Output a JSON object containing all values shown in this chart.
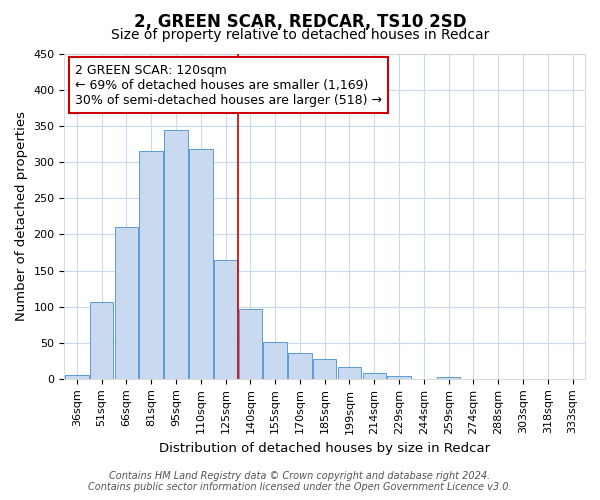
{
  "title": "2, GREEN SCAR, REDCAR, TS10 2SD",
  "subtitle": "Size of property relative to detached houses in Redcar",
  "xlabel": "Distribution of detached houses by size in Redcar",
  "ylabel": "Number of detached properties",
  "categories": [
    "36sqm",
    "51sqm",
    "66sqm",
    "81sqm",
    "95sqm",
    "110sqm",
    "125sqm",
    "140sqm",
    "155sqm",
    "170sqm",
    "185sqm",
    "199sqm",
    "214sqm",
    "229sqm",
    "244sqm",
    "259sqm",
    "274sqm",
    "288sqm",
    "303sqm",
    "318sqm",
    "333sqm"
  ],
  "values": [
    5,
    106,
    210,
    315,
    345,
    318,
    165,
    97,
    51,
    36,
    27,
    16,
    8,
    4,
    0,
    3,
    0,
    0,
    0,
    0,
    0
  ],
  "bar_color": "#c8d9f0",
  "bar_edge_color": "#5b9bd5",
  "red_line_x": 6.5,
  "annotation_text": "2 GREEN SCAR: 120sqm\n← 69% of detached houses are smaller (1,169)\n30% of semi-detached houses are larger (518) →",
  "annotation_box_edge_color": "#cc0000",
  "annotation_box_facecolor": "#ffffff",
  "red_line_color": "#cc0000",
  "ylim": [
    0,
    450
  ],
  "yticks": [
    0,
    50,
    100,
    150,
    200,
    250,
    300,
    350,
    400,
    450
  ],
  "footer_line1": "Contains HM Land Registry data © Crown copyright and database right 2024.",
  "footer_line2": "Contains public sector information licensed under the Open Government Licence v3.0.",
  "bg_color": "#ffffff",
  "grid_color": "#c8d9f0",
  "title_fontsize": 12,
  "subtitle_fontsize": 10,
  "axis_label_fontsize": 9.5,
  "tick_fontsize": 8,
  "annotation_fontsize": 9,
  "footer_fontsize": 7
}
